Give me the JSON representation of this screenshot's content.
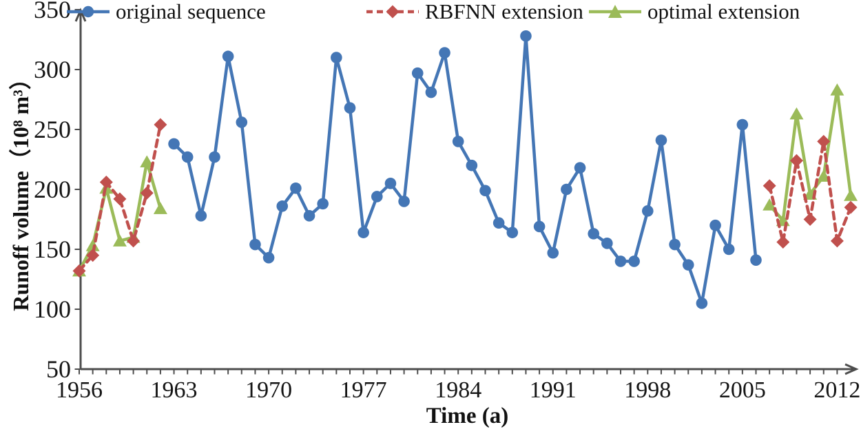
{
  "chart_data": {
    "type": "line",
    "title": "",
    "xlabel": "Time (a)",
    "ylabel": "Runoff volume（10⁸ m³）",
    "xlim": [
      1956,
      2013
    ],
    "ylim": [
      50,
      350
    ],
    "yticks": [
      50,
      100,
      150,
      200,
      250,
      300,
      350
    ],
    "xtick_labels": [
      1956,
      1963,
      1970,
      1977,
      1984,
      1991,
      1998,
      2005,
      2012
    ],
    "xtick_minor_interval": 1,
    "grid": "off",
    "legend_position": "top",
    "axis_color": "#4d4d4d",
    "tick_label_color": "#151515",
    "series": [
      {
        "name": "original sequence",
        "color": "#4476B5",
        "marker": "circle",
        "line": "solid",
        "segments": [
          {
            "start_year": 1963,
            "values": [
              238,
              227,
              178,
              227,
              311,
              256,
              154,
              143,
              186,
              201,
              178,
              188,
              310,
              268,
              164,
              194,
              205,
              190,
              297,
              281,
              314,
              240,
              220,
              199,
              172,
              164,
              328,
              169,
              147,
              200,
              218,
              163,
              155,
              140,
              140,
              182,
              241,
              154,
              137,
              105,
              170,
              150,
              254,
              141
            ]
          }
        ]
      },
      {
        "name": "RBFNN extension",
        "color": "#C0504D",
        "marker": "diamond",
        "line": "dashed",
        "segments": [
          {
            "start_year": 1956,
            "values": [
              132,
              145,
              206,
              192,
              157,
              197,
              254
            ]
          },
          {
            "start_year": 2007,
            "values": [
              203,
              156,
              224,
              175,
              240,
              157,
              185
            ]
          }
        ]
      },
      {
        "name": "optimal extension",
        "color": "#9BBB59",
        "marker": "triangle",
        "line": "solid",
        "segments": [
          {
            "start_year": 1956,
            "values": [
              132,
              153,
              201,
              157,
              160,
              223,
              184
            ]
          },
          {
            "start_year": 2007,
            "values": [
              187,
              174,
              263,
              196,
              211,
              283,
              195
            ]
          }
        ]
      }
    ]
  }
}
